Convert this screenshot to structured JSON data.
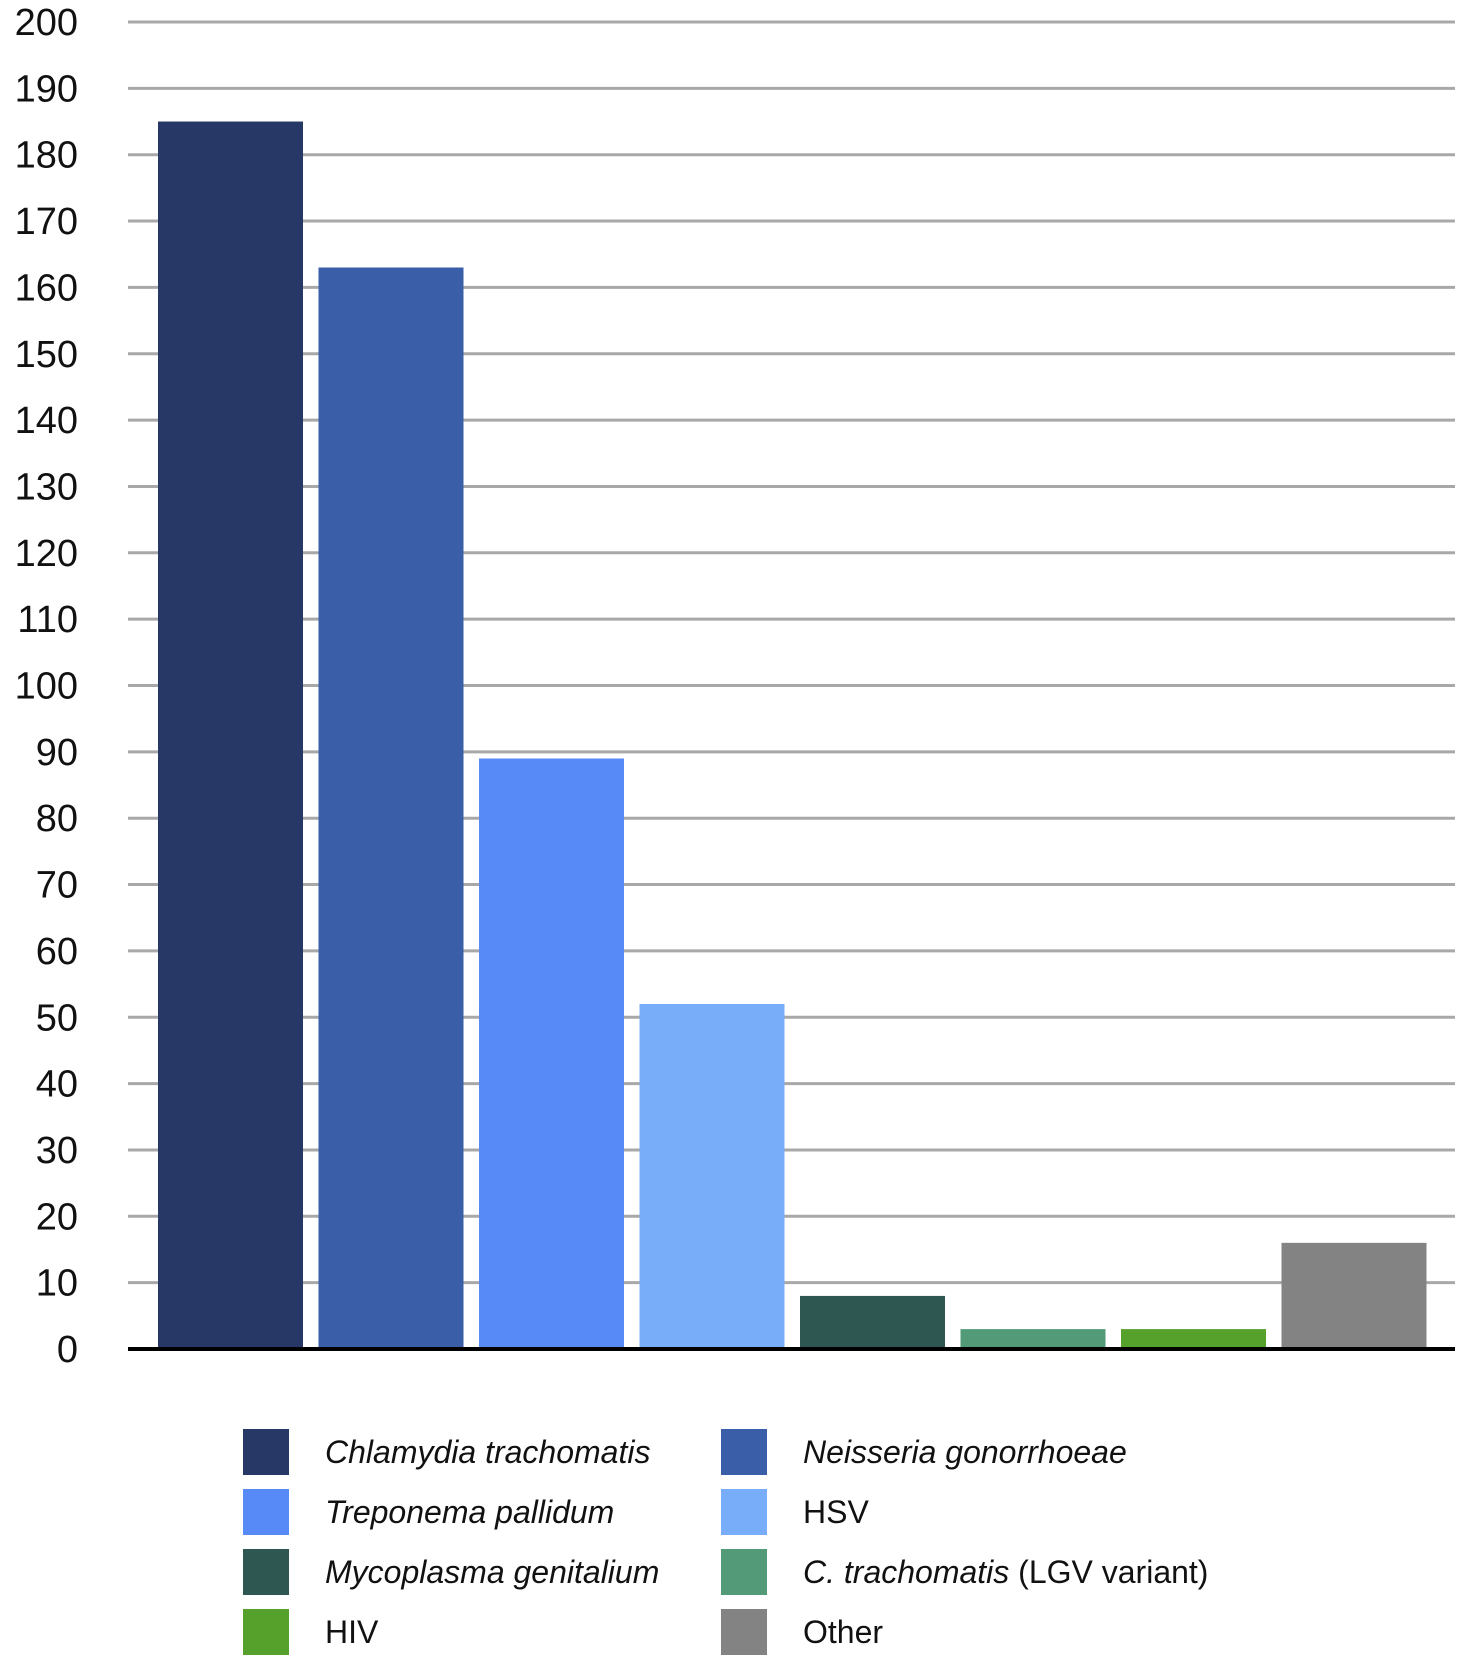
{
  "chart_data": {
    "type": "bar",
    "title": "",
    "xlabel": "",
    "ylabel": "",
    "ylim": [
      0,
      200
    ],
    "yticks": [
      0,
      10,
      20,
      30,
      40,
      50,
      60,
      70,
      80,
      90,
      100,
      110,
      120,
      130,
      140,
      150,
      160,
      170,
      180,
      190,
      200
    ],
    "grid": true,
    "legend_position": "bottom",
    "categories": [
      "Chlamydia trachomatis",
      "Neisseria gonorrhoeae",
      "Treponema pallidum",
      "HSV",
      "Mycoplasma genitalium",
      "C. trachomatis (LGV variant)",
      "HIV",
      "Other"
    ],
    "values": [
      185,
      163,
      89,
      52,
      8,
      3,
      3,
      16
    ],
    "colors": [
      "#273766",
      "#3b5ea8",
      "#588af7",
      "#78aef9",
      "#2f5751",
      "#539a78",
      "#56a12c",
      "#838383"
    ],
    "legend": [
      {
        "italic": "Chlamydia trachomatis",
        "plain": ""
      },
      {
        "italic": "Neisseria gonorrhoeae",
        "plain": ""
      },
      {
        "italic": "Treponema pallidum",
        "plain": ""
      },
      {
        "italic": "",
        "plain": "HSV"
      },
      {
        "italic": "Mycoplasma genitalium",
        "plain": ""
      },
      {
        "italic": "C. trachomatis",
        "plain": " (LGV variant)"
      },
      {
        "italic": "",
        "plain": "HIV"
      },
      {
        "italic": "",
        "plain": "Other"
      }
    ]
  }
}
